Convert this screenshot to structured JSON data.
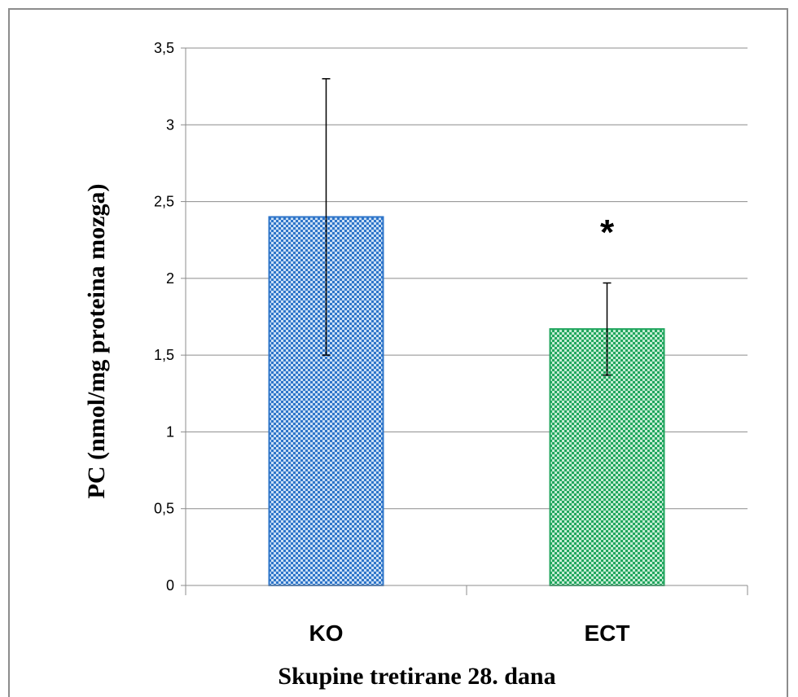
{
  "chart_data": {
    "type": "bar",
    "categories": [
      "KO",
      "ECT"
    ],
    "values": [
      2.4,
      1.67
    ],
    "error_upper": [
      3.3,
      1.97
    ],
    "error_lower": [
      1.5,
      1.37
    ],
    "colors": [
      "#2e75c9",
      "#21a65e"
    ],
    "pattern": "checkered",
    "xlabel": "Skupine tretirane 28. dana",
    "ylabel": "PC (nmol/mg proteina mozga)",
    "ylim": [
      0,
      3.5
    ],
    "yticks": [
      "0",
      "0,5",
      "1",
      "1,5",
      "2",
      "2,5",
      "3",
      "3,5"
    ],
    "ytick_values": [
      0,
      0.5,
      1,
      1.5,
      2,
      2.5,
      3,
      3.5
    ],
    "grid": true,
    "annotations": [
      {
        "category": "ECT",
        "text": "*"
      }
    ]
  }
}
